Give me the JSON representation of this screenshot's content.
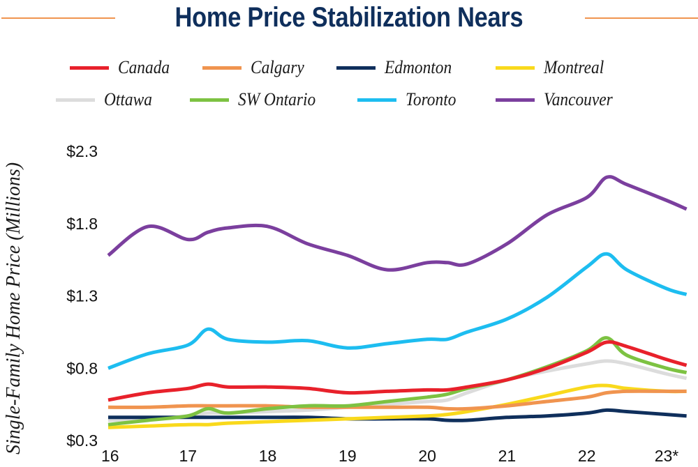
{
  "chart_data": {
    "type": "line",
    "title": "Home Price Stabilization Nears",
    "xlabel": "",
    "ylabel": "Single-Family Home Price (Millions)",
    "ylim": [
      0.3,
      2.3
    ],
    "xlim": [
      16,
      23.25
    ],
    "grid": false,
    "legend_position": "top",
    "y_ticks": [
      {
        "value": 2.3,
        "label": "$2.3"
      },
      {
        "value": 1.8,
        "label": "$1.8"
      },
      {
        "value": 1.3,
        "label": "$1.3"
      },
      {
        "value": 0.8,
        "label": "$0.8"
      },
      {
        "value": 0.3,
        "label": "$0.3"
      }
    ],
    "x_ticks": [
      {
        "value": 16,
        "label": "16"
      },
      {
        "value": 17,
        "label": "17"
      },
      {
        "value": 18,
        "label": "18"
      },
      {
        "value": 19,
        "label": "19"
      },
      {
        "value": 20,
        "label": "20"
      },
      {
        "value": 21,
        "label": "21"
      },
      {
        "value": 22,
        "label": "22"
      },
      {
        "value": 23,
        "label": "23*"
      }
    ],
    "x": [
      16,
      16.5,
      17,
      17.25,
      17.5,
      18,
      18.5,
      19,
      19.5,
      20,
      20.25,
      20.5,
      21,
      21.5,
      22,
      22.25,
      22.5,
      23,
      23.25
    ],
    "series": [
      {
        "name": "Canada",
        "color": "#e8212b",
        "values": [
          0.58,
          0.63,
          0.66,
          0.69,
          0.67,
          0.67,
          0.66,
          0.63,
          0.64,
          0.65,
          0.65,
          0.67,
          0.72,
          0.8,
          0.91,
          0.98,
          0.95,
          0.86,
          0.82
        ]
      },
      {
        "name": "Calgary",
        "color": "#f0944f",
        "values": [
          0.53,
          0.53,
          0.54,
          0.54,
          0.54,
          0.54,
          0.53,
          0.53,
          0.53,
          0.53,
          0.52,
          0.52,
          0.54,
          0.57,
          0.6,
          0.63,
          0.64,
          0.64,
          0.64
        ]
      },
      {
        "name": "Edmonton",
        "color": "#0f2f5c",
        "values": [
          0.46,
          0.46,
          0.46,
          0.46,
          0.46,
          0.46,
          0.46,
          0.45,
          0.45,
          0.45,
          0.44,
          0.44,
          0.46,
          0.47,
          0.49,
          0.51,
          0.5,
          0.48,
          0.47
        ]
      },
      {
        "name": "Montreal",
        "color": "#f9d91c",
        "values": [
          0.39,
          0.4,
          0.41,
          0.41,
          0.42,
          0.43,
          0.44,
          0.45,
          0.46,
          0.47,
          0.48,
          0.5,
          0.55,
          0.61,
          0.67,
          0.68,
          0.66,
          0.64,
          0.64
        ]
      },
      {
        "name": "Ottawa",
        "color": "#dcdcdc",
        "values": [
          0.44,
          0.45,
          0.47,
          0.49,
          0.49,
          0.5,
          0.51,
          0.53,
          0.55,
          0.57,
          0.58,
          0.63,
          0.72,
          0.78,
          0.83,
          0.85,
          0.83,
          0.76,
          0.73
        ]
      },
      {
        "name": "SW Ontario",
        "color": "#7dc242",
        "values": [
          0.41,
          0.44,
          0.47,
          0.52,
          0.49,
          0.52,
          0.54,
          0.54,
          0.57,
          0.6,
          0.62,
          0.66,
          0.72,
          0.81,
          0.92,
          1.01,
          0.89,
          0.8,
          0.77
        ]
      },
      {
        "name": "Toronto",
        "color": "#1dbdf0",
        "values": [
          0.8,
          0.9,
          0.96,
          1.07,
          1.0,
          0.98,
          0.99,
          0.94,
          0.97,
          1.0,
          1.0,
          1.05,
          1.14,
          1.29,
          1.5,
          1.59,
          1.48,
          1.35,
          1.31
        ]
      },
      {
        "name": "Vancouver",
        "color": "#7b3f9e",
        "values": [
          1.58,
          1.78,
          1.69,
          1.74,
          1.77,
          1.78,
          1.66,
          1.58,
          1.48,
          1.53,
          1.53,
          1.52,
          1.66,
          1.86,
          1.98,
          2.12,
          2.07,
          1.96,
          1.9
        ]
      }
    ]
  }
}
